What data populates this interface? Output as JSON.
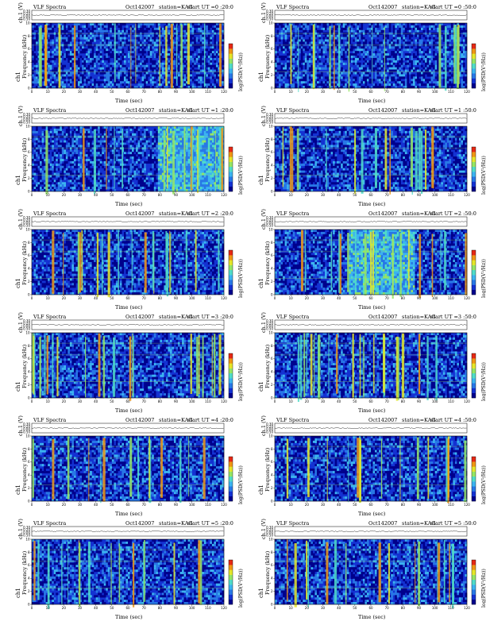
{
  "header": {
    "title": "VLF Spectra",
    "date": "Oct142007",
    "station": "station=KAG"
  },
  "labels": {
    "channel_axis": "ch.1 (V)",
    "frequency_axis": "Frequency  (kHz)",
    "channel_name": "ch1",
    "time_axis": "Time  (sec)",
    "colorbar": "log(PSD(V²/Hz))"
  },
  "panels": [
    {
      "start": "start  UT =0 :20:0"
    },
    {
      "start": "start  UT =0 :50:0"
    },
    {
      "start": "start  UT =1 :20:0"
    },
    {
      "start": "start  UT =1 :50:0"
    },
    {
      "start": "start  UT =2 :20:0"
    },
    {
      "start": "start  UT =2 :50:0"
    },
    {
      "start": "start  UT =3 :20:0"
    },
    {
      "start": "start  UT =3 :50:0"
    },
    {
      "start": "start  UT =4 :20:0"
    },
    {
      "start": "start  UT =4 :50:0"
    },
    {
      "start": "start  UT =5 :20:0"
    },
    {
      "start": "start  UT =5 :50:0"
    }
  ],
  "chart_data": {
    "type": "heatmap",
    "x_ticks": [
      "0",
      "10",
      "20",
      "30",
      "40",
      "50",
      "60",
      "70",
      "80",
      "90",
      "100",
      "110",
      "120"
    ],
    "y_ticks": [
      "0",
      "2",
      "4",
      "6",
      "8",
      "10"
    ],
    "ch_ticks": [
      "0.30",
      "0.20",
      "0.00",
      "-0.50"
    ],
    "xlim": [
      0,
      120
    ],
    "ylim": [
      0,
      10
    ],
    "colors": [
      "#00008c",
      "#1432d2",
      "#2878e6",
      "#3cb4f0",
      "#50dcc8",
      "#96e664",
      "#e6e628",
      "#f09614",
      "#e62814"
    ]
  }
}
